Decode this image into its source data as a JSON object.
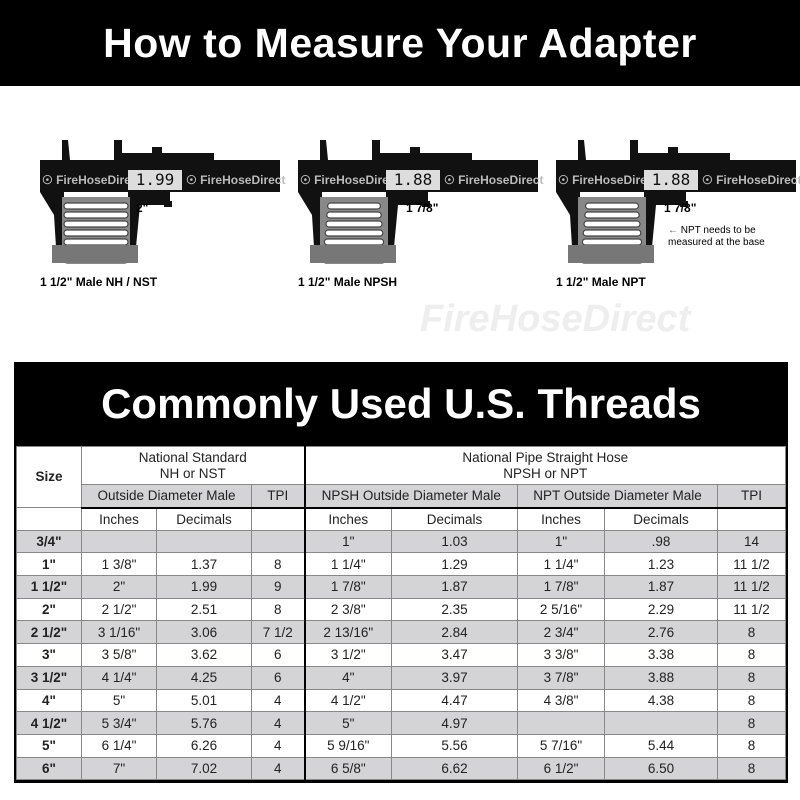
{
  "title": "How to Measure Your Adapter",
  "calipers": [
    {
      "reading": "1.99",
      "measurement": "2\"",
      "caption": "1 1/2\" Male NH / NST",
      "brand": "FireHoseDirect"
    },
    {
      "reading": "1.88",
      "measurement": "1 7/8\"",
      "caption": "1 1/2\" Male NPSH",
      "brand": "FireHoseDirect"
    },
    {
      "reading": "1.88",
      "measurement": "1 7/8\"",
      "caption": "1 1/2\" Male NPT",
      "brand": "FireHoseDirect",
      "note": "NPT needs to be measured at the base"
    }
  ],
  "watermark": "FireHoseDirect",
  "table": {
    "title": "Commonly Used U.S. Threads",
    "size_header": "Size",
    "group1": [
      "National Standard",
      "NH or NST"
    ],
    "group2": [
      "National Pipe Straight Hose",
      "NPSH or NPT"
    ],
    "sub": [
      "Outside Diameter Male",
      "TPI",
      "NPSH Outside Diameter Male",
      "NPT Outside Diameter Male",
      "TPI"
    ],
    "units": [
      "Inches",
      "Decimals",
      "Inches",
      "Decimals",
      "Inches",
      "Decimals"
    ],
    "rows": [
      [
        "3/4\"",
        "",
        "",
        "",
        "1\"",
        "1.03",
        "1\"",
        ".98",
        "14"
      ],
      [
        "1\"",
        "1 3/8\"",
        "1.37",
        "8",
        "1 1/4\"",
        "1.29",
        "1 1/4\"",
        "1.23",
        "11 1/2"
      ],
      [
        "1 1/2\"",
        "2\"",
        "1.99",
        "9",
        "1 7/8\"",
        "1.87",
        "1 7/8\"",
        "1.87",
        "11 1/2"
      ],
      [
        "2\"",
        "2 1/2\"",
        "2.51",
        "8",
        "2 3/8\"",
        "2.35",
        "2 5/16\"",
        "2.29",
        "11 1/2"
      ],
      [
        "2 1/2\"",
        "3 1/16\"",
        "3.06",
        "7 1/2",
        "2 13/16\"",
        "2.84",
        "2 3/4\"",
        "2.76",
        "8"
      ],
      [
        "3\"",
        "3 5/8\"",
        "3.62",
        "6",
        "3 1/2\"",
        "3.47",
        "3 3/8\"",
        "3.38",
        "8"
      ],
      [
        "3 1/2\"",
        "4 1/4\"",
        "4.25",
        "6",
        "4\"",
        "3.97",
        "3 7/8\"",
        "3.88",
        "8"
      ],
      [
        "4\"",
        "5\"",
        "5.01",
        "4",
        "4 1/2\"",
        "4.47",
        "4 3/8\"",
        "4.38",
        "8"
      ],
      [
        "4 1/2\"",
        "5 3/4\"",
        "5.76",
        "4",
        "5\"",
        "4.97",
        "",
        "",
        "8"
      ],
      [
        "5\"",
        "6 1/4\"",
        "6.26",
        "4",
        "5 9/16\"",
        "5.56",
        "5 7/16\"",
        "5.44",
        "8"
      ],
      [
        "6\"",
        "7\"",
        "7.02",
        "4",
        "6 5/8\"",
        "6.62",
        "6 1/2\"",
        "6.50",
        "8"
      ]
    ]
  }
}
